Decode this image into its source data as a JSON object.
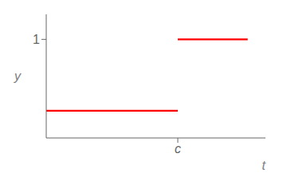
{
  "chart_data": {
    "type": "line",
    "xlabel": "t",
    "ylabel": "y",
    "x": [
      -0.65,
      0.55,
      0.55,
      0.55,
      1.188
    ],
    "values": [
      0,
      0,
      null,
      1,
      1
    ],
    "color": "#ff0000",
    "xlim": [
      -0.65,
      1.35
    ],
    "ylim": [
      -0.38,
      1.35
    ],
    "xticks": [
      {
        "value": 0.55,
        "label": "c"
      }
    ],
    "yticks": [
      1
    ],
    "grid": false
  }
}
